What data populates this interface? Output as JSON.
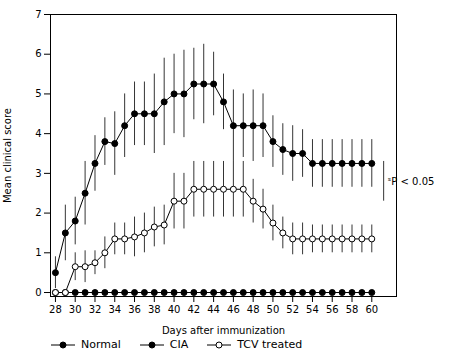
{
  "chart_data": {
    "type": "line",
    "x": [
      28,
      29,
      30,
      31,
      32,
      33,
      34,
      35,
      36,
      37,
      38,
      39,
      40,
      41,
      42,
      43,
      44,
      45,
      46,
      47,
      48,
      49,
      50,
      51,
      52,
      53,
      54,
      55,
      56,
      57,
      58,
      59,
      60
    ],
    "series": [
      {
        "name": "Normal",
        "color": "#000000",
        "marker": "filled_circle",
        "values": [
          0,
          0,
          0,
          0,
          0,
          0,
          0,
          0,
          0,
          0,
          0,
          0,
          0,
          0,
          0,
          0,
          0,
          0,
          0,
          0,
          0,
          0,
          0,
          0,
          0,
          0,
          0,
          0,
          0,
          0,
          0,
          0,
          0
        ],
        "errors": [
          0,
          0,
          0,
          0,
          0,
          0,
          0,
          0,
          0,
          0,
          0,
          0,
          0,
          0,
          0,
          0,
          0,
          0,
          0,
          0,
          0,
          0,
          0,
          0,
          0,
          0,
          0,
          0,
          0,
          0,
          0,
          0,
          0
        ]
      },
      {
        "name": "CIA",
        "color": "#000000",
        "marker": "filled_circle",
        "values": [
          0.5,
          1.5,
          1.8,
          2.5,
          3.25,
          3.8,
          3.75,
          4.2,
          4.5,
          4.5,
          4.5,
          4.8,
          5.0,
          5.0,
          5.25,
          5.25,
          5.25,
          4.8,
          4.2,
          4.2,
          4.2,
          4.2,
          3.8,
          3.6,
          3.5,
          3.5,
          3.25,
          3.25,
          3.25,
          3.25,
          3.25,
          3.25,
          3.25
        ],
        "errors": [
          0.4,
          0.7,
          0.6,
          0.8,
          0.7,
          0.6,
          0.8,
          0.8,
          0.8,
          0.8,
          1.0,
          1.1,
          1.0,
          1.1,
          0.9,
          1.0,
          0.8,
          0.7,
          0.9,
          0.8,
          0.9,
          0.8,
          0.65,
          0.65,
          0.7,
          0.6,
          0.6,
          0.6,
          0.6,
          0.6,
          0.6,
          0.6,
          0.6
        ]
      },
      {
        "name": "TCV treated",
        "color": "#000000",
        "marker": "open_circle",
        "values": [
          0,
          0,
          0.65,
          0.65,
          0.75,
          1.0,
          1.35,
          1.35,
          1.4,
          1.5,
          1.65,
          1.7,
          2.3,
          2.3,
          2.6,
          2.6,
          2.6,
          2.6,
          2.6,
          2.6,
          2.3,
          2.1,
          1.75,
          1.5,
          1.35,
          1.35,
          1.35,
          1.35,
          1.35,
          1.35,
          1.35,
          1.35,
          1.35
        ],
        "errors": [
          0,
          0,
          0.35,
          0.4,
          0.3,
          0.4,
          0.4,
          0.4,
          0.5,
          0.5,
          0.5,
          0.5,
          0.7,
          0.7,
          0.7,
          0.7,
          0.7,
          0.7,
          0.7,
          0.7,
          0.55,
          0.5,
          0.45,
          0.4,
          0.4,
          0.4,
          0.35,
          0.35,
          0.35,
          0.35,
          0.35,
          0.35,
          0.35
        ]
      }
    ],
    "xlabel": "Days after immunization",
    "ylabel": "Mean clinical score",
    "xlim": [
      27.5,
      62.5
    ],
    "xticks": [
      28,
      30,
      32,
      34,
      36,
      38,
      40,
      42,
      44,
      46,
      48,
      50,
      52,
      54,
      56,
      58,
      60
    ],
    "ylim": [
      -0.1,
      7
    ],
    "yticks": [
      0,
      1,
      2,
      3,
      4,
      5,
      6,
      7
    ],
    "grid": false,
    "legend": "bottom",
    "annotations": [
      {
        "text": "ˢP < 0.05",
        "x": 61.6,
        "y": 2.8,
        "bracket_x": 61.2,
        "bracket": [
          2.3,
          3.3
        ]
      }
    ]
  }
}
